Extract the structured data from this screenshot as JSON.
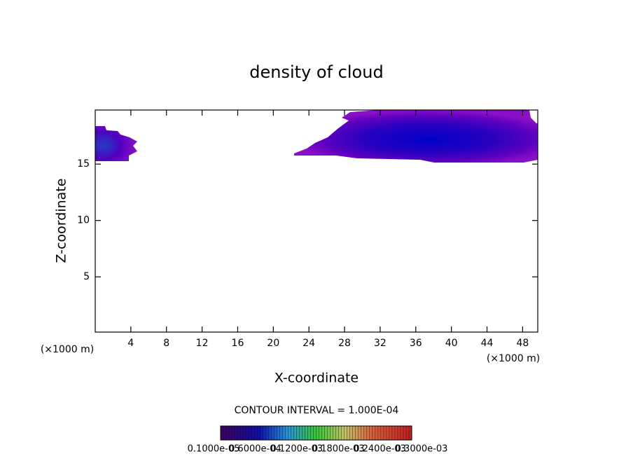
{
  "chart_data": {
    "type": "contour",
    "title": "density of cloud",
    "x_label": "X-coordinate",
    "y_label": "Z-coordinate",
    "x_unit_label": "(×1000 m)",
    "y_unit_label": "(×1000 m)",
    "xlim": [
      0,
      49.7
    ],
    "xticks": [
      4,
      8,
      12,
      16,
      20,
      24,
      28,
      32,
      36,
      40,
      44,
      48
    ],
    "ylim": [
      0.1,
      19.8
    ],
    "yticks": [
      5,
      10,
      15
    ],
    "contour_interval_label": "CONTOUR INTERVAL = 1.000E-04",
    "colorbar_labels": [
      "0.1000e-05",
      "0.6000e-04",
      "0.1200e-03",
      "0.1800e-03",
      "0.2400e-03",
      "0.3000e-03"
    ]
  }
}
